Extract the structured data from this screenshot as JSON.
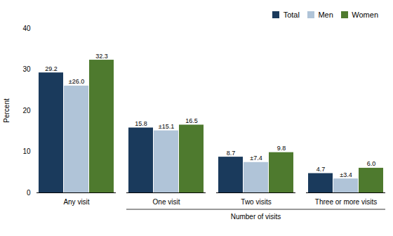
{
  "chart_data": {
    "type": "bar",
    "categories": [
      "Any visit",
      "One visit",
      "Two visits",
      "Three or more visits"
    ],
    "series": [
      {
        "name": "Total",
        "color": "#1a3a5c",
        "values": [
          29.2,
          15.8,
          8.7,
          4.7
        ]
      },
      {
        "name": "Men",
        "color": "#b0c4d8",
        "values": [
          26.0,
          15.1,
          7.4,
          3.4
        ],
        "value_labels": [
          "±26.0",
          "±15.1",
          "±7.4",
          "±3.4"
        ]
      },
      {
        "name": "Women",
        "color": "#4e7a2e",
        "values": [
          32.3,
          16.5,
          9.8,
          6.0
        ],
        "value_labels": [
          "32.3",
          "16.5",
          "9.8",
          "6.0"
        ]
      }
    ],
    "ylabel": "Percent",
    "ylim": [
      0,
      40
    ],
    "yticks": [
      0,
      10,
      20,
      30,
      40
    ],
    "grid": false,
    "legend": "upper right",
    "data_labels": true,
    "annotations": [
      {
        "text": "Number of visits",
        "categories": [
          "One visit",
          "Two visits",
          "Three or more visits"
        ]
      }
    ]
  }
}
